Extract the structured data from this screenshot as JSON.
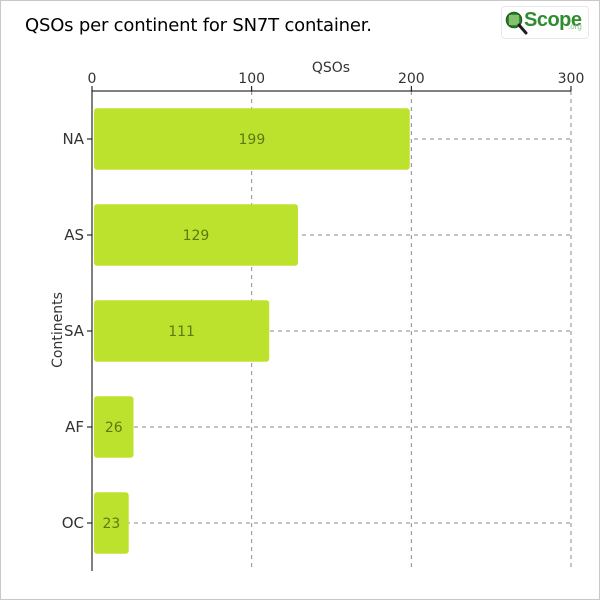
{
  "chart_data": {
    "type": "bar",
    "orientation": "horizontal",
    "title": "QSOs per continent for SN7T container.",
    "xlabel": "QSOs",
    "ylabel": "Continents",
    "categories": [
      "NA",
      "AS",
      "SA",
      "AF",
      "OC"
    ],
    "values": [
      199,
      129,
      111,
      26,
      23
    ],
    "xlim": [
      0,
      300
    ],
    "x_ticks": [
      0,
      100,
      200,
      300
    ],
    "x_tick_labels": [
      "0",
      "100",
      "200",
      "300"
    ],
    "x_axis_position": "top",
    "grid": true,
    "bar_color": "#bde22e",
    "data_label_color": "#5a7a12"
  },
  "logo": {
    "name": "qscope-logo",
    "text": "Scope",
    "suffix": ".org",
    "color": "#2f8c2f"
  }
}
